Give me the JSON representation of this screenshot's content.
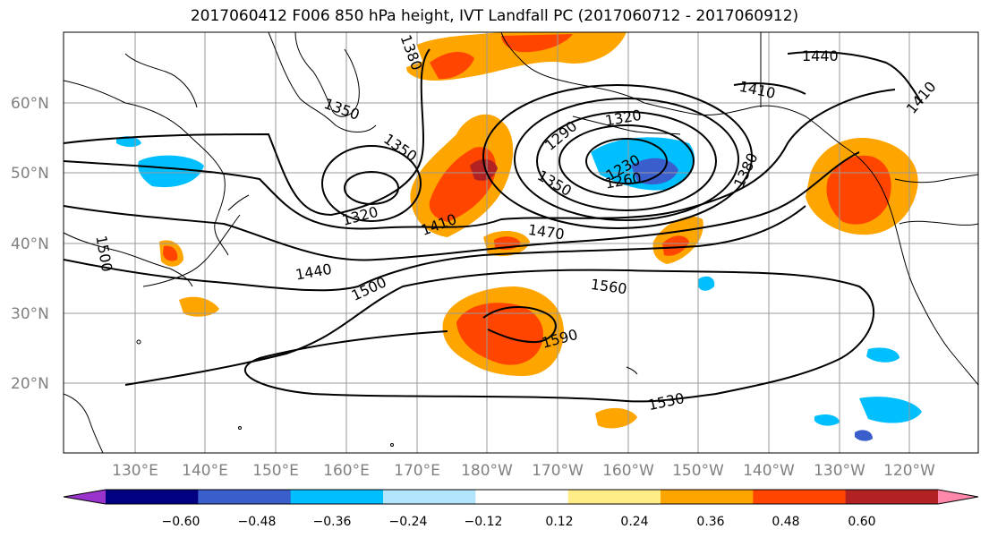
{
  "title": "2017060412 F006 850 hPa height, IVT Landfall PC (2017060712 - 2017060912)",
  "map": {
    "lon_labels": [
      "130°E",
      "140°E",
      "150°E",
      "160°E",
      "170°E",
      "180°W",
      "170°W",
      "160°W",
      "150°W",
      "140°W",
      "130°W",
      "120°W"
    ],
    "lat_labels": [
      "60°N",
      "50°N",
      "40°N",
      "30°N",
      "20°N"
    ],
    "contour_labels": [
      "1380",
      "1350",
      "1350",
      "1320",
      "1410",
      "1440",
      "1500",
      "1470",
      "1560",
      "1590",
      "1530",
      "1290",
      "1320",
      "1230",
      "1260",
      "1350",
      "1380",
      "1410",
      "1440",
      "1410",
      "1500"
    ]
  },
  "colorbar": {
    "colors": [
      "#9933cc",
      "#000080",
      "#3a5fcd",
      "#00bfff",
      "#b3e5fc",
      "#ffffff",
      "#ffee88",
      "#ffa500",
      "#ff4500",
      "#b22222",
      "#ff88aa"
    ],
    "tick_labels": [
      "−0.60",
      "−0.48",
      "−0.36",
      "−0.24",
      "−0.12",
      "0.12",
      "0.24",
      "0.36",
      "0.48",
      "0.60"
    ]
  },
  "chart_data": {
    "type": "heatmap",
    "title": "2017060412 F006 850 hPa height, IVT Landfall PC (2017060712 - 2017060912)",
    "extent": {
      "lon_min": 120,
      "lon_max": 250,
      "lat_min": 10,
      "lat_max": 70
    },
    "contour_field": "850 hPa height",
    "contour_levels": [
      1230,
      1260,
      1290,
      1320,
      1350,
      1380,
      1410,
      1440,
      1470,
      1500,
      1530,
      1560,
      1590
    ],
    "fill_field": "IVT Landfall PC",
    "fill_levels": [
      -0.6,
      -0.48,
      -0.36,
      -0.24,
      -0.12,
      0.12,
      0.24,
      0.36,
      0.48,
      0.6
    ],
    "grid": true,
    "colorbar": "bottom"
  }
}
